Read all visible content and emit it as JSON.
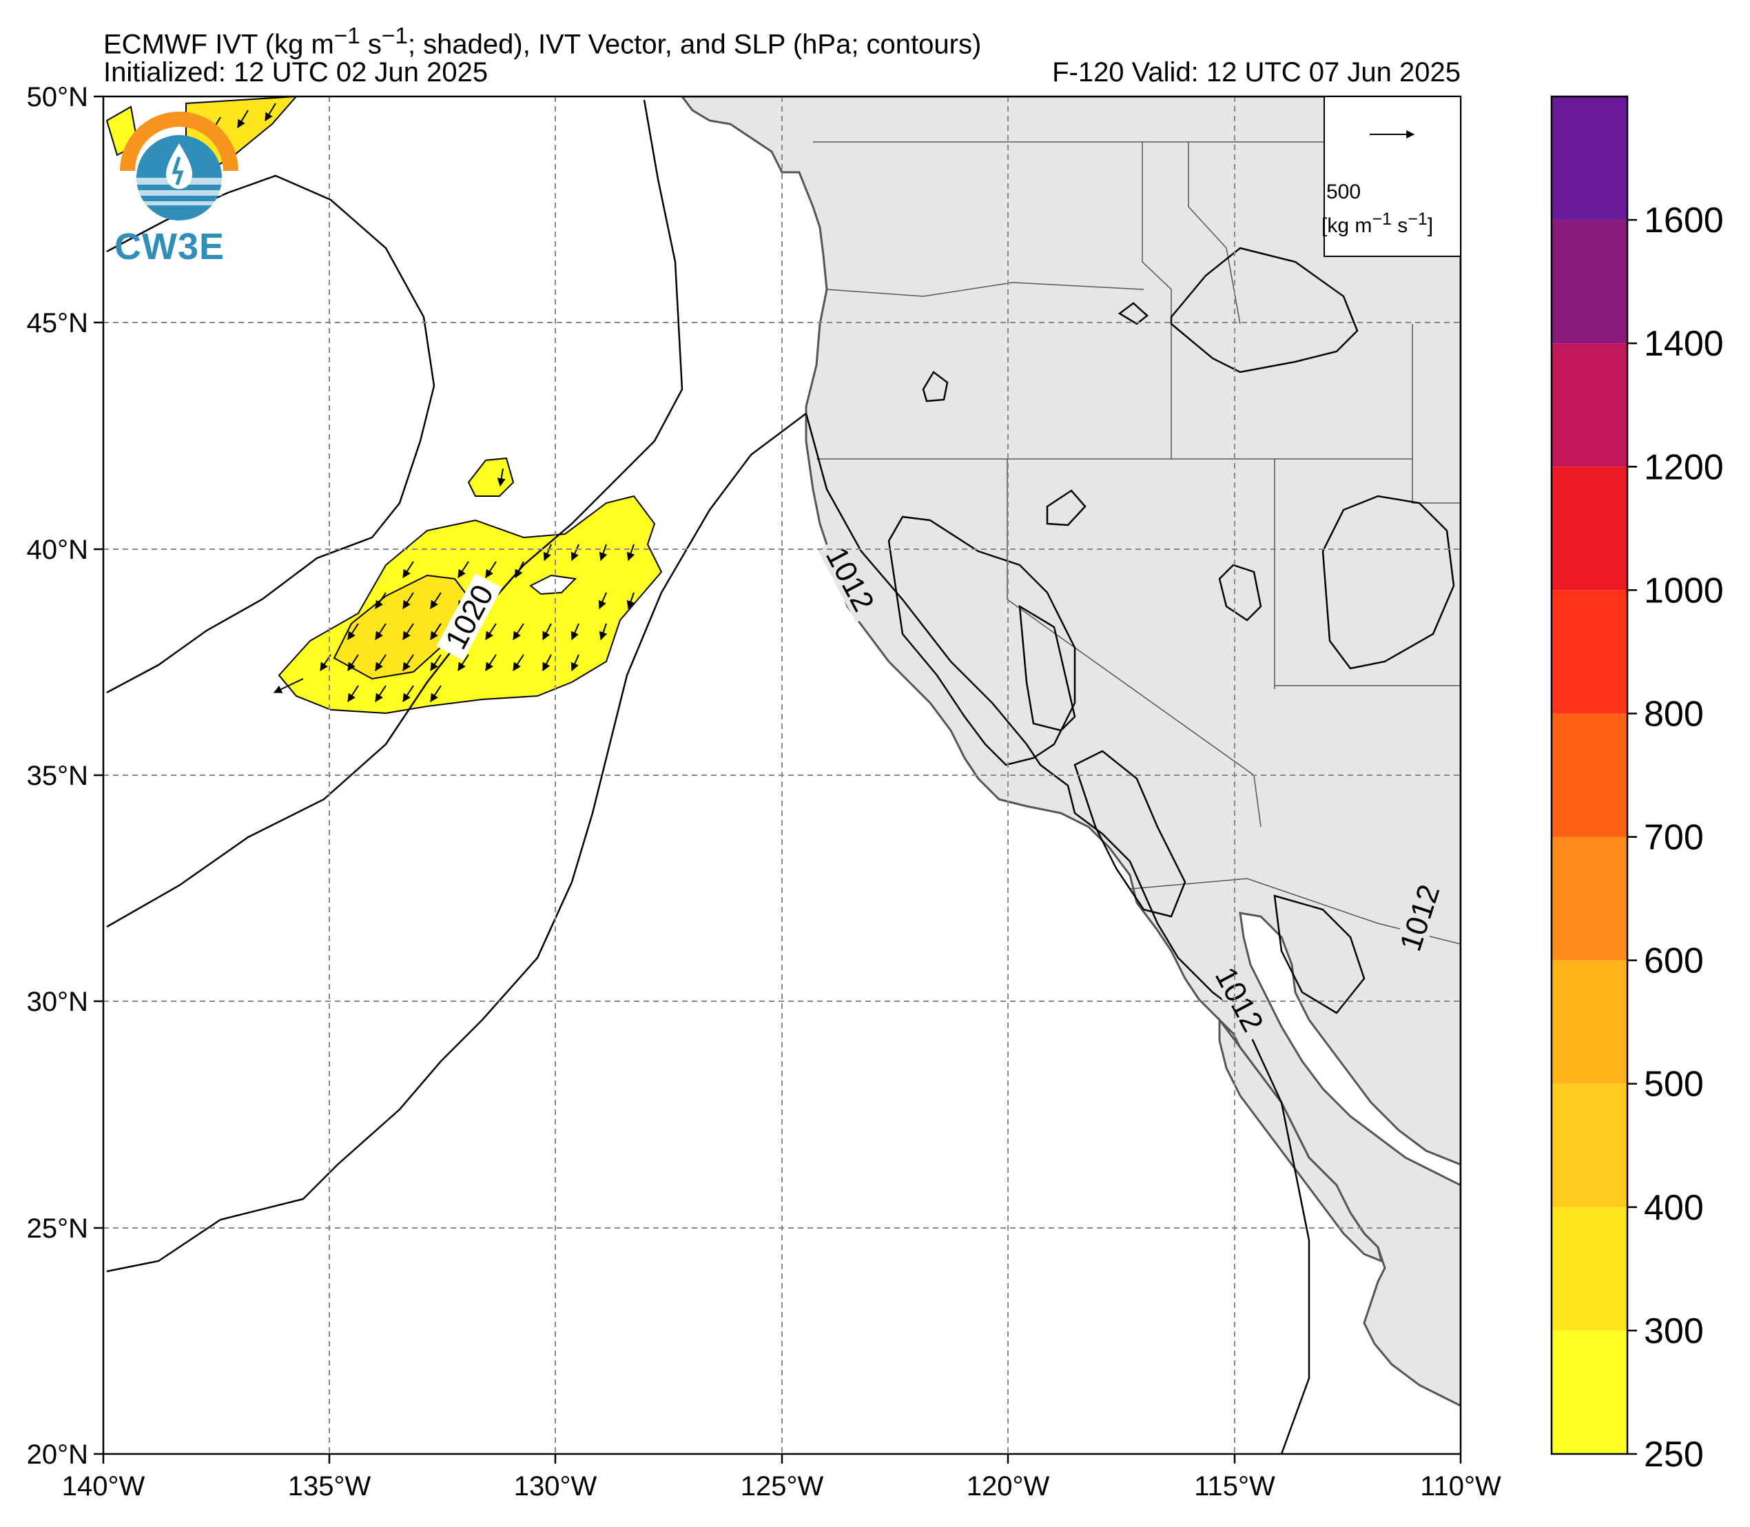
{
  "header": {
    "title_line1_html": "ECMWF IVT (kg m<sup>−1</sup> s<sup>−1</sup>; shaded), IVT Vector, and SLP (hPa; contours)",
    "title_line2": "Initialized: 12 UTC 02 Jun 2025",
    "valid_line": "F-120  Valid: 12 UTC 07 Jun 2025"
  },
  "map": {
    "lon_ticks": [
      "140°W",
      "135°W",
      "130°W",
      "125°W",
      "120°W",
      "115°W",
      "110°W"
    ],
    "lat_ticks": [
      "50°N",
      "45°N",
      "40°N",
      "35°N",
      "30°N",
      "25°N",
      "20°N"
    ],
    "lon_range": [
      -140,
      -110
    ],
    "lat_range": [
      20,
      50
    ],
    "slp_contour_labels": [
      "1020",
      "1012",
      "1012",
      "1012"
    ],
    "land_color": "#e6e6e6",
    "ivt_shade_color": "#ffff21"
  },
  "vector_key": {
    "value": "500",
    "units_html": "[kg m<sup>−1</sup> s<sup>−1</sup>]"
  },
  "colorbar": {
    "ticks": [
      "250",
      "300",
      "400",
      "500",
      "600",
      "700",
      "800",
      "1000",
      "1200",
      "1400",
      "1600"
    ],
    "colors": [
      "#ffff21",
      "#ffe51e",
      "#ffcb1c",
      "#ffb21a",
      "#ff8a19",
      "#ff6117",
      "#ff3318",
      "#ed1c24",
      "#c2185b",
      "#8b1a7e",
      "#6a1b9a"
    ]
  },
  "logo": {
    "text": "CW3E"
  }
}
